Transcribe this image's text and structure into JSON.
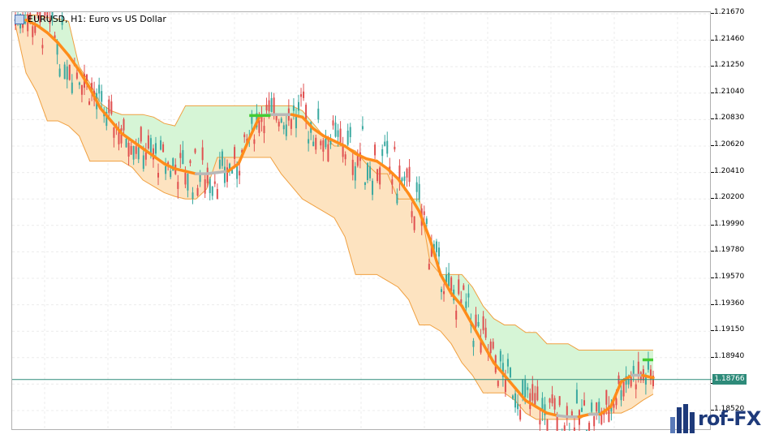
{
  "window": {
    "title": "EURUSD, H1:  Euro vs US Dollar",
    "current_price": "1.18766"
  },
  "logo": {
    "text": "rof-FX"
  },
  "colors": {
    "bull_candle": "#3aa9a0",
    "bear_candle": "#e05050",
    "channel_up_fill": "#d6f5d6",
    "channel_down_fill": "#fde3c0",
    "midline": "#ff8c1a",
    "midline_flat": "#b8b8b8",
    "midline_signal": "#44cc33",
    "price_line": "#2e8b7a"
  },
  "chart_data": {
    "type": "line",
    "symbol": "EURUSD",
    "timeframe": "H1",
    "ylim": [
      1.1842,
      1.217
    ],
    "y_ticks": [
      "1.21670",
      "1.21460",
      "1.21250",
      "1.21040",
      "1.20830",
      "1.20620",
      "1.20410",
      "1.20200",
      "1.19990",
      "1.19780",
      "1.19570",
      "1.19360",
      "1.19150",
      "1.18940",
      "1.18730",
      "1.18520"
    ],
    "current_price": 1.18766,
    "grid": true,
    "series": [
      {
        "values": [
          1.2162,
          1.2162,
          1.2158,
          1.2152,
          1.2144,
          1.2134,
          1.2122,
          1.2108,
          1.2092,
          1.2082,
          1.2072,
          1.2066,
          1.206,
          1.2054,
          1.2048,
          1.2044,
          1.2042,
          1.204,
          1.204,
          1.2041,
          1.2042,
          1.2048,
          1.2068,
          1.2086,
          1.2087,
          1.2087,
          1.2087,
          1.2085,
          1.2076,
          1.207,
          1.2066,
          1.2062,
          1.2056,
          1.2052,
          1.205,
          1.2044,
          1.2036,
          1.2024,
          1.201,
          1.1988,
          1.196,
          1.1945,
          1.1935,
          1.192,
          1.1905,
          1.189,
          1.188,
          1.187,
          1.186,
          1.1855,
          1.185,
          1.1848,
          1.1847,
          1.1847,
          1.1849,
          1.1849,
          1.1855,
          1.1875,
          1.188,
          1.188,
          1.1878
        ]
      },
      {
        "values": [
          1.2166,
          1.2166,
          1.2166,
          1.2164,
          1.2163,
          1.2161,
          1.2125,
          1.2112,
          1.2096,
          1.209,
          1.2087,
          1.2087,
          1.2087,
          1.2085,
          1.208,
          1.2078,
          1.2094,
          1.2094,
          1.2094,
          1.2094,
          1.2094,
          1.2094,
          1.2094,
          1.2094,
          1.2094,
          1.2094,
          1.2094,
          1.209,
          1.208,
          1.207,
          1.2062,
          1.2062,
          1.2058,
          1.2048,
          1.204,
          1.204,
          1.202,
          1.202,
          1.202,
          1.197,
          1.196,
          1.196,
          1.196,
          1.195,
          1.1935,
          1.1925,
          1.192,
          1.192,
          1.1914,
          1.1914,
          1.1905,
          1.1905,
          1.1905,
          1.19,
          1.19,
          1.19,
          1.19,
          1.19,
          1.19,
          1.19,
          1.19
        ]
      },
      {
        "values": [
          1.2158,
          1.212,
          1.2105,
          1.2082,
          1.2082,
          1.2078,
          1.207,
          1.205,
          1.205,
          1.205,
          1.205,
          1.2045,
          1.2035,
          1.203,
          1.2025,
          1.2022,
          1.202,
          1.202,
          1.2028,
          1.2053,
          1.2053,
          1.2053,
          1.2053,
          1.2053,
          1.2053,
          1.204,
          1.203,
          1.202,
          1.2015,
          1.201,
          1.2005,
          1.199,
          1.196,
          1.196,
          1.196,
          1.1955,
          1.195,
          1.194,
          1.192,
          1.192,
          1.1915,
          1.1905,
          1.189,
          1.188,
          1.1866,
          1.1866,
          1.1866,
          1.186,
          1.185,
          1.1845,
          1.1845,
          1.1845,
          1.1845,
          1.1845,
          1.185,
          1.185,
          1.185,
          1.185,
          1.1854,
          1.186,
          1.1865
        ]
      }
    ]
  }
}
